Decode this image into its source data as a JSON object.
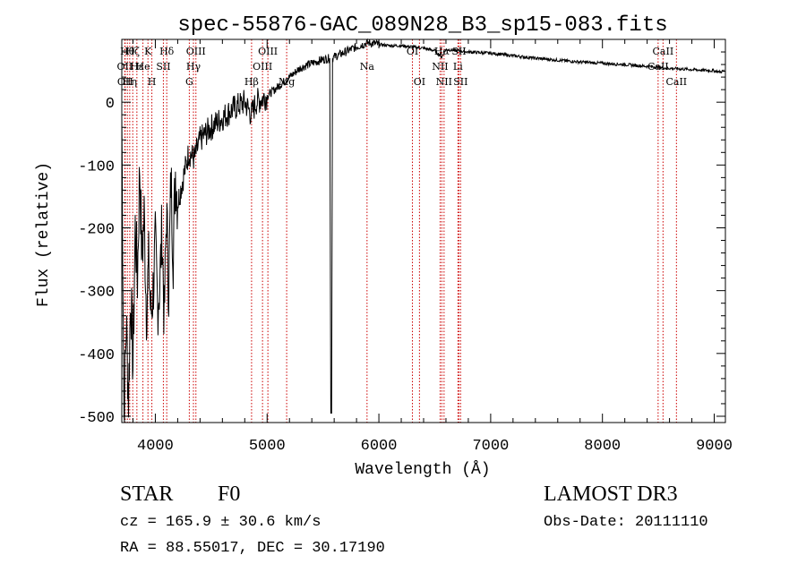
{
  "chart_data": {
    "type": "line",
    "title": "spec-55876-GAC_089N28_B3_sp15-083.fits",
    "xlabel": "Wavelength (Å)",
    "ylabel": "Flux (relative)",
    "xlim": [
      3700,
      9100
    ],
    "ylim": [
      -510,
      100
    ],
    "x_ticks": [
      4000,
      5000,
      6000,
      7000,
      8000,
      9000
    ],
    "y_ticks": [
      0,
      -100,
      -200,
      -300,
      -400,
      -500
    ],
    "series": [
      {
        "name": "flux",
        "x": [
          3700,
          3720,
          3740,
          3760,
          3780,
          3800,
          3820,
          3840,
          3860,
          3880,
          3900,
          3920,
          3940,
          3960,
          3980,
          4000,
          4020,
          4040,
          4060,
          4080,
          4100,
          4120,
          4140,
          4160,
          4180,
          4200,
          4250,
          4300,
          4350,
          4400,
          4450,
          4500,
          4600,
          4700,
          4800,
          4860,
          4900,
          5000,
          5100,
          5200,
          5300,
          5400,
          5500,
          5560,
          5570,
          5577,
          5585,
          5600,
          5700,
          5800,
          5900,
          6000,
          6100,
          6200,
          6300,
          6400,
          6500,
          6563,
          6600,
          6700,
          6800,
          7000,
          7200,
          7400,
          7600,
          7800,
          8000,
          8200,
          8400,
          8500,
          8600,
          8700,
          8800,
          8900,
          9000,
          9050,
          9100
        ],
        "values": [
          -20,
          -500,
          -350,
          -470,
          -300,
          -420,
          -200,
          -280,
          -100,
          -250,
          -180,
          -330,
          -260,
          -340,
          -300,
          -230,
          -320,
          -290,
          -200,
          -350,
          -170,
          -300,
          -120,
          -240,
          -110,
          -160,
          -120,
          -80,
          -90,
          -60,
          -50,
          -40,
          -25,
          -10,
          0,
          -20,
          0,
          10,
          25,
          40,
          55,
          62,
          68,
          70,
          -495,
          -495,
          70,
          72,
          80,
          88,
          95,
          92,
          90,
          90,
          88,
          86,
          82,
          72,
          84,
          82,
          80,
          78,
          74,
          70,
          67,
          64,
          62,
          60,
          57,
          56,
          54,
          53,
          52,
          51,
          50,
          48,
          50
        ]
      }
    ],
    "lines": [
      {
        "wavelength": 3727,
        "label": "OII",
        "row": 1
      },
      {
        "wavelength": 3730,
        "label": "OII",
        "row": 2
      },
      {
        "wavelength": 3750,
        "label": "Hθ",
        "row": 0
      },
      {
        "wavelength": 3771,
        "label": "Hη",
        "row": 2
      },
      {
        "wavelength": 3798,
        "label": "Hζ",
        "row": 0
      },
      {
        "wavelength": 3835,
        "label": "Hε",
        "row": 1
      },
      {
        "wavelength": 3889,
        "label": "He",
        "row": 1
      },
      {
        "wavelength": 3934,
        "label": "K",
        "row": 0
      },
      {
        "wavelength": 3969,
        "label": "H",
        "row": 2
      },
      {
        "wavelength": 4072,
        "label": "SII",
        "row": 1
      },
      {
        "wavelength": 4102,
        "label": "Hδ",
        "row": 0
      },
      {
        "wavelength": 4304,
        "label": "G",
        "row": 2
      },
      {
        "wavelength": 4341,
        "label": "Hγ",
        "row": 1
      },
      {
        "wavelength": 4363,
        "label": "OIII",
        "row": 0
      },
      {
        "wavelength": 4861,
        "label": "Hβ",
        "row": 2
      },
      {
        "wavelength": 4959,
        "label": "OIII",
        "row": 1
      },
      {
        "wavelength": 5007,
        "label": "OIII",
        "row": 0
      },
      {
        "wavelength": 5175,
        "label": "Mg",
        "row": 2
      },
      {
        "wavelength": 5894,
        "label": "Na",
        "row": 1
      },
      {
        "wavelength": 6300,
        "label": "OI",
        "row": 0
      },
      {
        "wavelength": 6363,
        "label": "OI",
        "row": 2
      },
      {
        "wavelength": 6548,
        "label": "NII",
        "row": 1
      },
      {
        "wavelength": 6563,
        "label": "Hα",
        "row": 0
      },
      {
        "wavelength": 6583,
        "label": "NII",
        "row": 2
      },
      {
        "wavelength": 6707,
        "label": "Li",
        "row": 1
      },
      {
        "wavelength": 6716,
        "label": "SII",
        "row": 0
      },
      {
        "wavelength": 6731,
        "label": "SII",
        "row": 2
      },
      {
        "wavelength": 8498,
        "label": "CaII",
        "row": 1
      },
      {
        "wavelength": 8542,
        "label": "CaII",
        "row": 0
      },
      {
        "wavelength": 8662,
        "label": "CaII",
        "row": 2
      }
    ]
  },
  "info": {
    "class": "STAR",
    "subclass": "F0",
    "survey": "LAMOST DR3",
    "cz": "cz = 165.9 ± 30.6 km/s",
    "obs_date": "Obs-Date: 20111110",
    "coords": "RA =  88.55017, DEC =  30.17190"
  },
  "colors": {
    "line_marker": "#cc0000",
    "spectrum": "#000000",
    "axes": "#000000"
  }
}
